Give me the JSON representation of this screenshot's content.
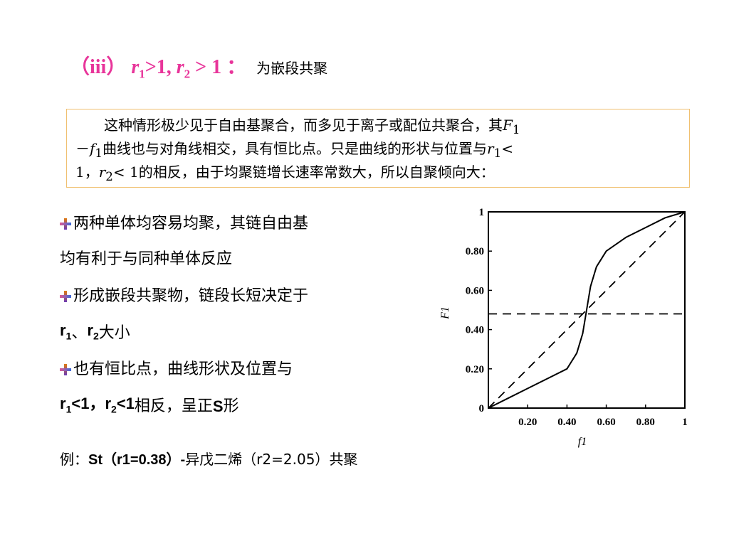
{
  "heading": {
    "prefix": "（iii） ",
    "r1": "r",
    "r1_sub": "1",
    "cond1": ">1, ",
    "r2": "r",
    "r2_sub": "2",
    "cond2": " > 1 ：",
    "subtitle": "为嵌段共聚"
  },
  "note": {
    "line1_text": "这种情形极少见于自由基聚合，而多见于离子或配位共聚合，其",
    "line1_var": "F",
    "line1_sub": "1",
    "line2_dash": "－",
    "line2_var": "f",
    "line2_sub": "1",
    "line2_text": "曲线也与对角线相交，具有恒比点。只是曲线的形状与位置与",
    "line2_var2": "r",
    "line2_sub2": "1",
    "line2_end": "<",
    "line3_start": "1，",
    "line3_var": "r",
    "line3_sub": "2",
    "line3_text": "< 1的相反，由于均聚链增长速率常数大，所以自聚倾向大："
  },
  "bullets": [
    {
      "text": "两种单体均容易均聚，其链自由基",
      "continuation": "均有利于与同种单体反应"
    },
    {
      "text": "形成嵌段共聚物，链段长短决定于",
      "cont_r1": "r",
      "cont_r1_sub": "1",
      "cont_sep": "、",
      "cont_r2": "r",
      "cont_r2_sub": "2",
      "cont_end": "大小"
    },
    {
      "text": "也有恒比点，曲线形状及位置与",
      "cont_r1": "r",
      "cont_r1_sub": "1",
      "cont_mid": "<1，",
      "cont_r2": "r",
      "cont_r2_sub": "2",
      "cont_mid2": "<1",
      "cont_end": "相反，呈正",
      "cont_S": "S",
      "cont_tail": "形"
    }
  ],
  "example": {
    "prefix": "例：",
    "text1": "St（r1=0.38）",
    "dash": "-",
    "text2": "异戊二烯（r2=2.05）",
    "suffix": "共聚"
  },
  "chart_data": {
    "type": "line",
    "xlabel": "f1",
    "ylabel": "F1",
    "xlim": [
      0,
      1
    ],
    "ylim": [
      0,
      1
    ],
    "x_ticks": [
      "0.20",
      "0.40",
      "0.60",
      "0.80",
      "1"
    ],
    "y_ticks": [
      "0",
      "0.20",
      "0.40",
      "0.60",
      "0.80",
      "1"
    ],
    "x_tick_values": [
      0.2,
      0.4,
      0.6,
      0.8,
      1.0
    ],
    "y_tick_values": [
      0,
      0.2,
      0.4,
      0.6,
      0.8,
      1.0
    ],
    "series": [
      {
        "style": "solid",
        "x": [
          0,
          0.1,
          0.2,
          0.3,
          0.4,
          0.45,
          0.48,
          0.5,
          0.52,
          0.55,
          0.6,
          0.7,
          0.8,
          0.9,
          1.0
        ],
        "y": [
          0,
          0.05,
          0.1,
          0.15,
          0.2,
          0.28,
          0.38,
          0.5,
          0.62,
          0.72,
          0.8,
          0.87,
          0.92,
          0.97,
          1.0
        ]
      },
      {
        "style": "dashed",
        "x": [
          0,
          1
        ],
        "y": [
          0,
          1
        ]
      },
      {
        "style": "dashed",
        "x": [
          0,
          1
        ],
        "y": [
          0.48,
          0.48
        ]
      }
    ],
    "grid": false
  }
}
